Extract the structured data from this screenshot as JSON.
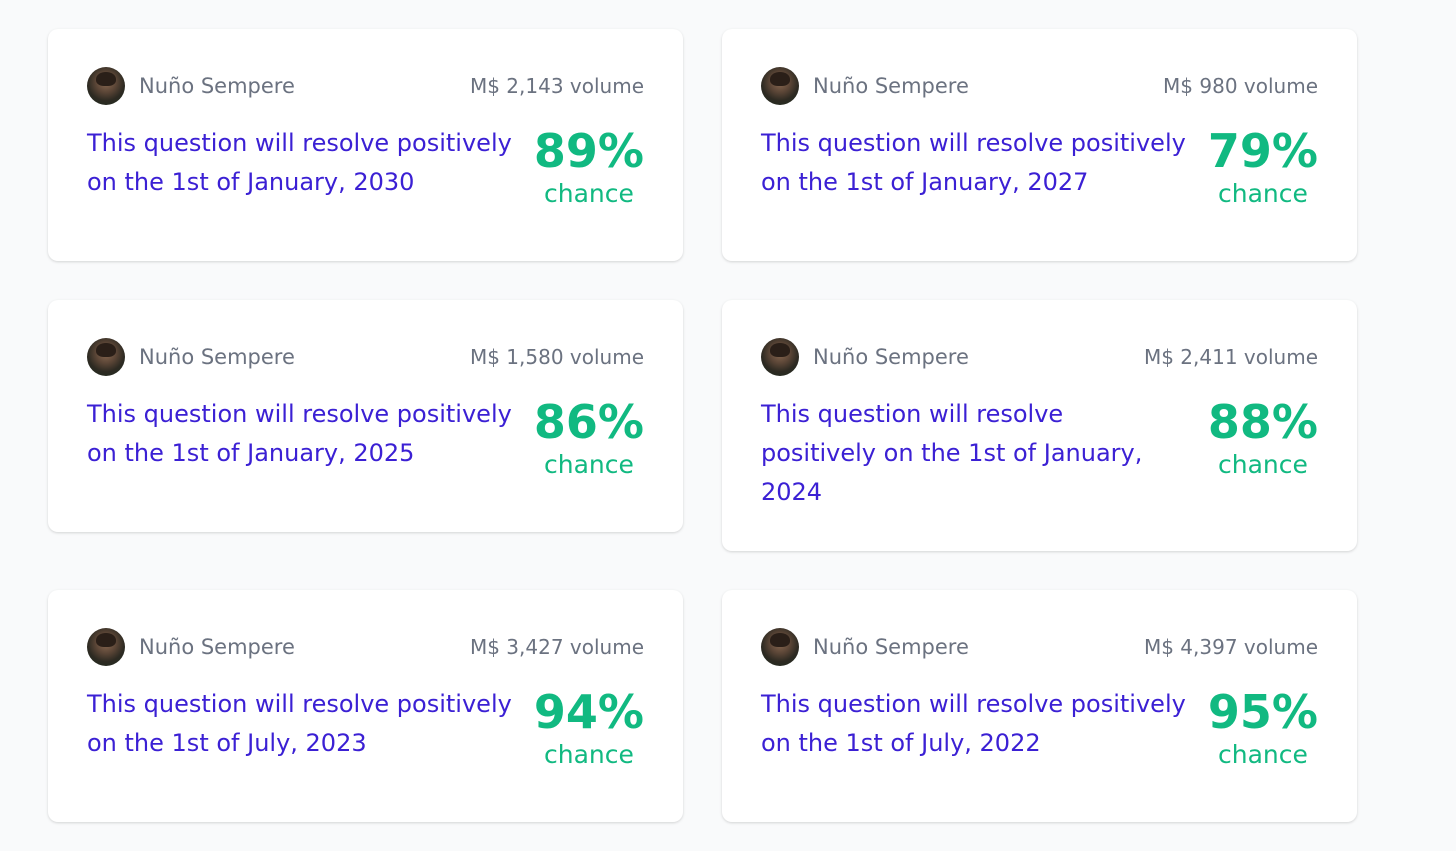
{
  "markets": [
    {
      "creator": "Nuño Sempere",
      "volume": "M$ 2,143 volume",
      "question": "This question will resolve positively on the 1st of January, 2030",
      "probability": "89%",
      "chance_label": "chance"
    },
    {
      "creator": "Nuño Sempere",
      "volume": "M$ 980 volume",
      "question": "This question will resolve positively on the 1st of January, 2027",
      "probability": "79%",
      "chance_label": "chance"
    },
    {
      "creator": "Nuño Sempere",
      "volume": "M$ 1,580 volume",
      "question": "This question will resolve positively on the 1st of January, 2025",
      "probability": "86%",
      "chance_label": "chance"
    },
    {
      "creator": "Nuño Sempere",
      "volume": "M$ 2,411 volume",
      "question": "This question will resolve positively on the 1st of January, 2024",
      "probability": "88%",
      "chance_label": "chance"
    },
    {
      "creator": "Nuño Sempere",
      "volume": "M$ 3,427 volume",
      "question": "This question will resolve positively on the 1st of July, 2023",
      "probability": "94%",
      "chance_label": "chance"
    },
    {
      "creator": "Nuño Sempere",
      "volume": "M$ 4,397 volume",
      "question": "This question will resolve positively on the 1st of July, 2022",
      "probability": "95%",
      "chance_label": "chance"
    }
  ],
  "colors": {
    "question": "#3b20d4",
    "probability": "#11b981",
    "meta": "#6b7280",
    "background": "#f9fafb"
  },
  "icons": {
    "avatar": "user-avatar-photo"
  }
}
